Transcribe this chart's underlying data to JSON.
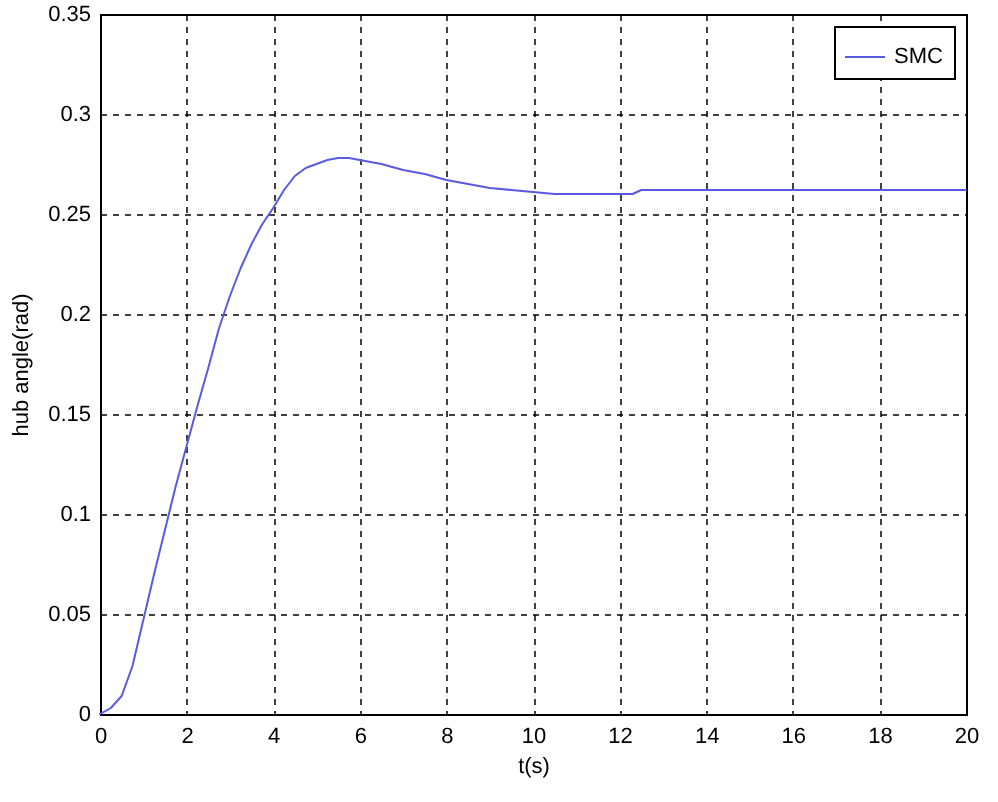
{
  "chart_data": {
    "type": "line",
    "xlabel": "t(s)",
    "ylabel": "hub angle(rad)",
    "x": [
      0,
      0.25,
      0.5,
      0.75,
      1,
      1.25,
      1.5,
      1.75,
      2,
      2.25,
      2.5,
      2.75,
      3,
      3.25,
      3.5,
      3.75,
      4,
      4.25,
      4.5,
      4.75,
      5,
      5.25,
      5.5,
      5.75,
      6,
      6.5,
      7,
      7.5,
      8,
      8.5,
      9,
      9.5,
      10,
      10.5,
      11,
      11.5,
      12,
      12.3,
      12.5,
      13,
      14,
      15,
      16,
      17,
      18,
      19,
      20
    ],
    "series": [
      {
        "name": "SMC",
        "color": "#5a5ae0",
        "values": [
          0,
          0.003,
          0.009,
          0.024,
          0.047,
          0.07,
          0.092,
          0.114,
          0.134,
          0.154,
          0.173,
          0.193,
          0.209,
          0.223,
          0.235,
          0.245,
          0.253,
          0.262,
          0.269,
          0.273,
          0.275,
          0.277,
          0.278,
          0.278,
          0.277,
          0.275,
          0.272,
          0.27,
          0.267,
          0.265,
          0.263,
          0.262,
          0.261,
          0.26,
          0.26,
          0.26,
          0.26,
          0.26,
          0.262,
          0.262,
          0.262,
          0.262,
          0.262,
          0.262,
          0.262,
          0.262,
          0.262
        ]
      }
    ],
    "xlim": [
      0,
      20
    ],
    "xticks": [
      0,
      2,
      4,
      6,
      8,
      10,
      12,
      14,
      16,
      18,
      20
    ],
    "ylim": [
      0,
      0.35
    ],
    "yticks": [
      0,
      0.05,
      0.1,
      0.15,
      0.2,
      0.25,
      0.3,
      0.35
    ],
    "grid": true,
    "legend": "top right",
    "line_style": "solid"
  }
}
